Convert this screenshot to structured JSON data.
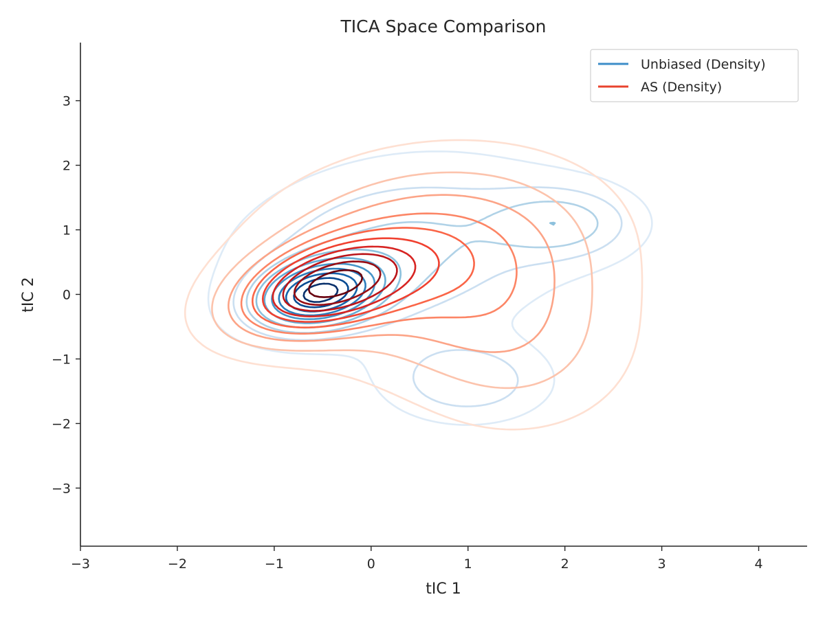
{
  "chart_data": {
    "type": "contour",
    "title": "TICA Space Comparison",
    "xlabel": "tIC 1",
    "ylabel": "tIC 2",
    "xlim": [
      -3,
      4.5
    ],
    "ylim": [
      -3.9,
      3.9
    ],
    "xticks": [
      -3,
      -2,
      -1,
      0,
      1,
      2,
      3,
      4
    ],
    "yticks": [
      -3,
      -2,
      -1,
      0,
      1,
      2,
      3
    ],
    "xtick_labels": [
      "−3",
      "−2",
      "−1",
      "0",
      "1",
      "2",
      "3",
      "4"
    ],
    "ytick_labels": [
      "−3",
      "−2",
      "−1",
      "0",
      "1",
      "2",
      "3"
    ],
    "legend_position": "top-right",
    "grid": false,
    "series": [
      {
        "name": "Unbiased (Density)",
        "color": "#3c8dc8",
        "colormap": "Blues",
        "levels": 10,
        "modes": [
          {
            "x": -0.55,
            "y": 0.0,
            "weight": 1.0,
            "sx": 0.42,
            "sy": 0.34,
            "rho": 0.25
          },
          {
            "x": 2.0,
            "y": 1.1,
            "weight": 0.32,
            "sx": 0.5,
            "sy": 0.38,
            "rho": 0.0
          },
          {
            "x": 1.0,
            "y": -1.35,
            "weight": 0.3,
            "sx": 0.55,
            "sy": 0.42,
            "rho": 0.0
          },
          {
            "x": 0.3,
            "y": 0.7,
            "weight": 0.35,
            "sx": 1.1,
            "sy": 0.9,
            "rho": 0.2
          }
        ]
      },
      {
        "name": "AS (Density)",
        "color": "#e8432e",
        "colormap": "Reds",
        "levels": 10,
        "modes": [
          {
            "x": -0.5,
            "y": 0.1,
            "weight": 1.0,
            "sx": 0.6,
            "sy": 0.48,
            "rho": 0.4
          },
          {
            "x": 0.6,
            "y": 0.6,
            "weight": 0.55,
            "sx": 1.1,
            "sy": 0.95,
            "rho": 0.15
          },
          {
            "x": 1.5,
            "y": -0.8,
            "weight": 0.25,
            "sx": 0.8,
            "sy": 0.9,
            "rho": 0.0
          }
        ]
      }
    ]
  }
}
